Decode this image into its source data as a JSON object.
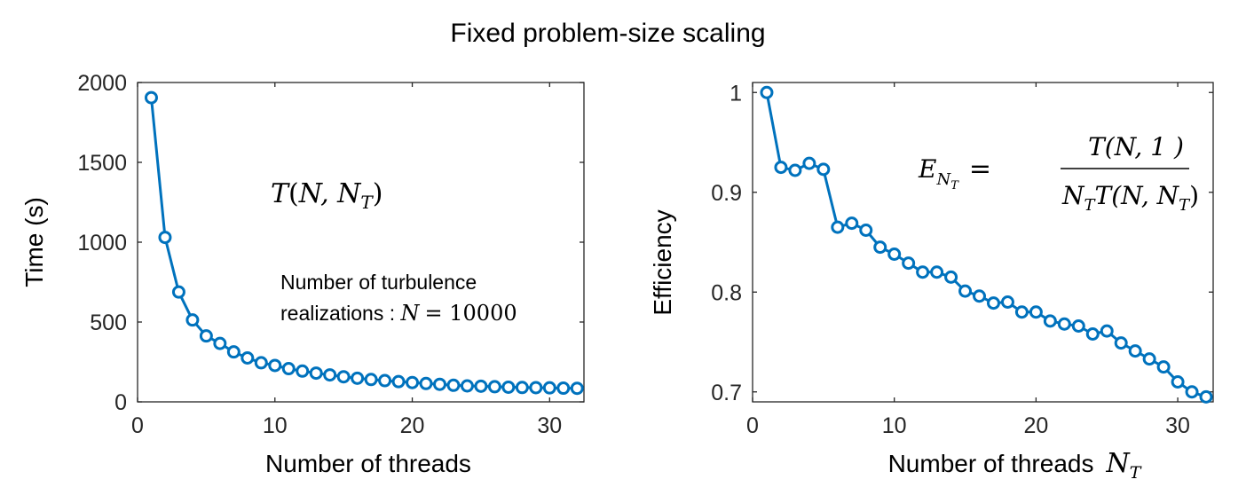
{
  "figure": {
    "title": "Fixed problem-size scaling",
    "series_color": "#0072bd"
  },
  "chart_data": [
    {
      "type": "line",
      "xlabel": "Number of threads",
      "ylabel": "Time (s)",
      "xlim": [
        0,
        32.5
      ],
      "ylim": [
        0,
        2000
      ],
      "xticks": [
        0,
        10,
        20,
        30
      ],
      "yticks": [
        0,
        500,
        1000,
        1500,
        2000
      ],
      "grid": false,
      "legend": "none",
      "marker": "circle",
      "x": [
        1,
        2,
        3,
        4,
        5,
        6,
        7,
        8,
        9,
        10,
        11,
        12,
        13,
        14,
        15,
        16,
        17,
        18,
        19,
        20,
        21,
        22,
        23,
        24,
        25,
        26,
        27,
        28,
        29,
        30,
        31,
        32
      ],
      "y": [
        1905,
        1030,
        688,
        513,
        413,
        366,
        313,
        275,
        245,
        228,
        208,
        193,
        180,
        169,
        157,
        148,
        140,
        133,
        127,
        121,
        115,
        110,
        104,
        100,
        98,
        95,
        92,
        90,
        89,
        88,
        86,
        85
      ],
      "annotations": {
        "formula": {
          "symbol": "T",
          "args": "N, N",
          "args_sub": "T"
        },
        "note_line1": "Number of turbulence",
        "note_line2_prefix": "realizations : ",
        "note_var": "N",
        "note_eq": "= 10000"
      }
    },
    {
      "type": "line",
      "xlabel": "Number of threads",
      "xlabel_symbol": "N",
      "xlabel_symbol_sub": "T",
      "ylabel": "Efficiency",
      "xlim": [
        0,
        32.5
      ],
      "ylim": [
        0.69,
        1.01
      ],
      "xticks": [
        0,
        10,
        20,
        30
      ],
      "yticks": [
        "0.7",
        "0.8",
        "0.9",
        "1"
      ],
      "grid": false,
      "legend": "none",
      "marker": "circle",
      "x": [
        1,
        2,
        3,
        4,
        5,
        6,
        7,
        8,
        9,
        10,
        11,
        12,
        13,
        14,
        15,
        16,
        17,
        18,
        19,
        20,
        21,
        22,
        23,
        24,
        25,
        26,
        27,
        28,
        29,
        30,
        31,
        32
      ],
      "y": [
        1.0,
        0.925,
        0.922,
        0.929,
        0.923,
        0.865,
        0.869,
        0.862,
        0.845,
        0.838,
        0.829,
        0.82,
        0.82,
        0.815,
        0.801,
        0.796,
        0.789,
        0.79,
        0.78,
        0.78,
        0.771,
        0.768,
        0.766,
        0.758,
        0.761,
        0.749,
        0.741,
        0.733,
        0.725,
        0.71,
        0.7,
        0.695
      ],
      "annotations": {
        "lhs": "E",
        "lhs_sub": "N",
        "lhs_subsub": "T",
        "numerator": "T(N, 1 )",
        "denominator_a": "N",
        "denominator_a_sub": "T",
        "denominator_b": "T(N, N",
        "denominator_b_sub": "T",
        "denominator_close": ")"
      }
    }
  ]
}
